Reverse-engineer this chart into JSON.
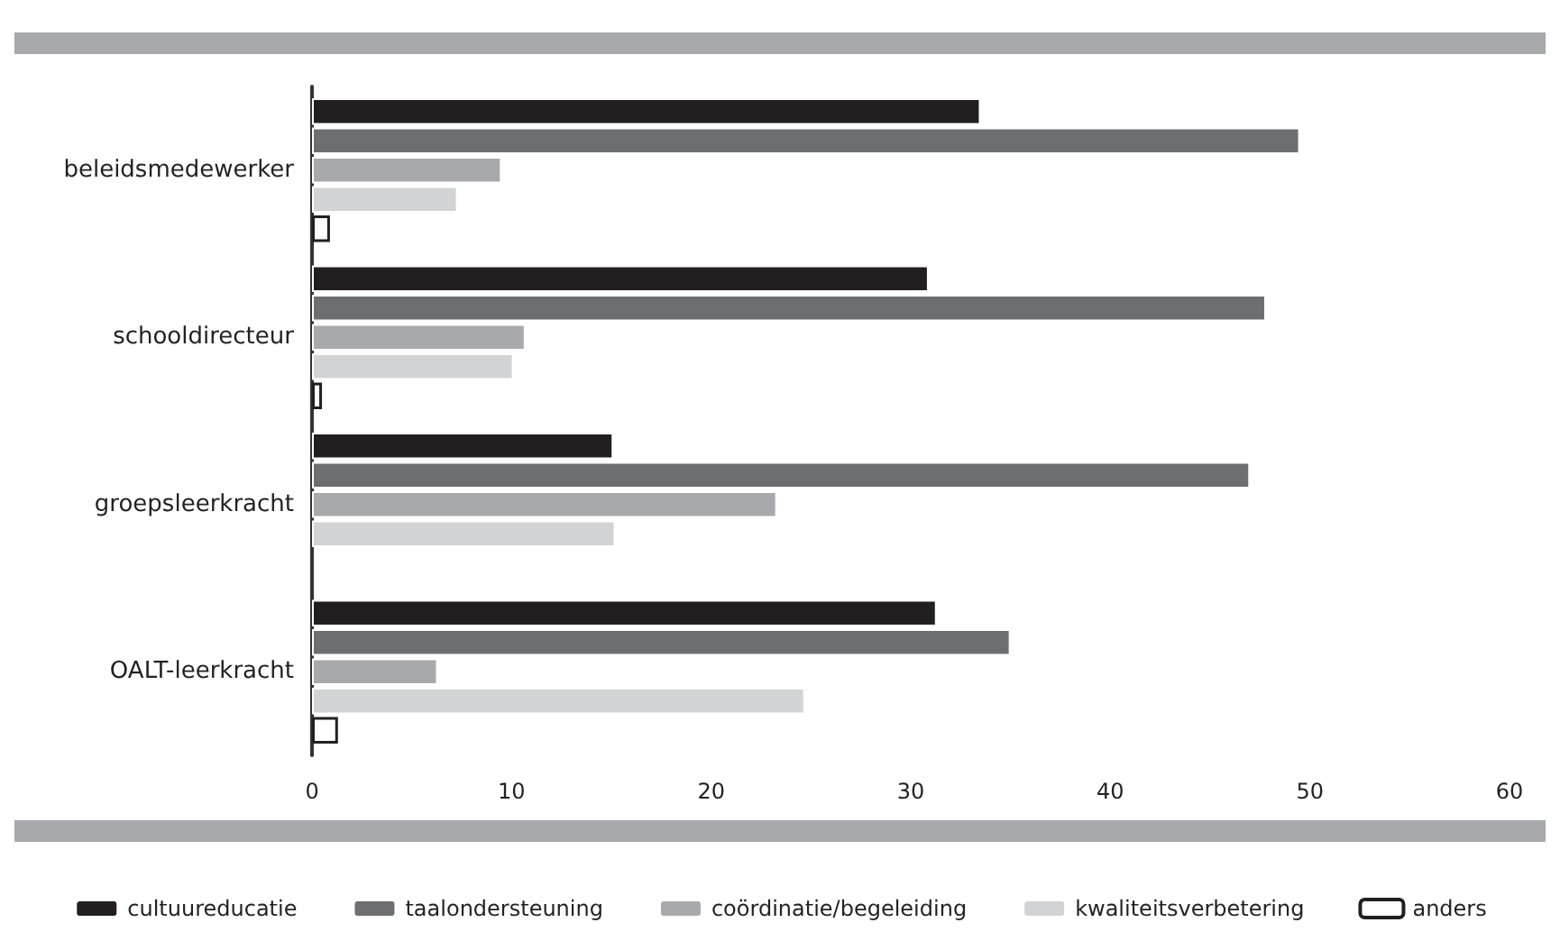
{
  "chart_data": {
    "type": "bar",
    "orientation": "horizontal",
    "legend": "bottom",
    "categories": [
      "beleidsmedewerker",
      "schooldirecteur",
      "groepsleerkracht",
      "OALT-leerkracht"
    ],
    "xlim": [
      0,
      60
    ],
    "xticks": [
      0,
      10,
      20,
      30,
      40,
      50,
      60
    ],
    "series": [
      {
        "name": "cultuureducatie",
        "color": "#231f20",
        "values": [
          33.5,
          30.9,
          15.1,
          31.3
        ]
      },
      {
        "name": "taalondersteuning",
        "color": "#6d6e71",
        "values": [
          49.5,
          47.8,
          47,
          35
        ]
      },
      {
        "name": "coördinatie/begeleiding",
        "color": "#a7a9ac",
        "values": [
          9.5,
          10.7,
          23.3,
          6.3
        ]
      },
      {
        "name": "kwaliteitsverbetering",
        "color": "#d1d3d4",
        "values": [
          7.3,
          10.1,
          15.2,
          24.7
        ]
      },
      {
        "name": "anders",
        "color": "#ffffff",
        "values": [
          0.9,
          0.5,
          null,
          1.3
        ]
      }
    ]
  }
}
